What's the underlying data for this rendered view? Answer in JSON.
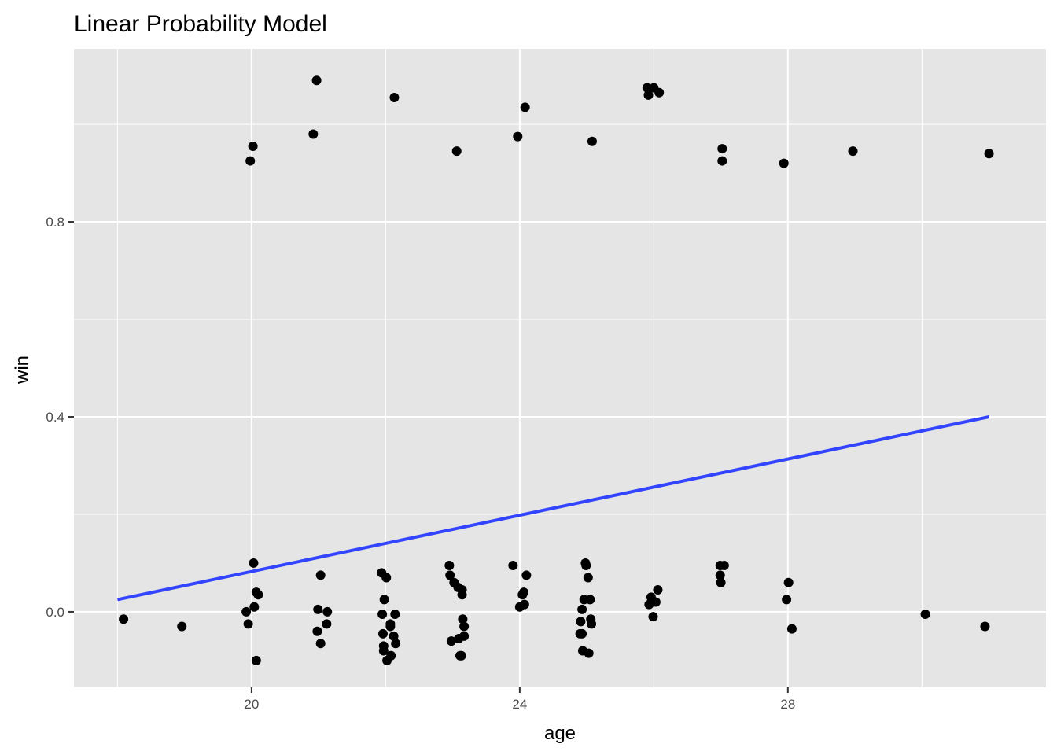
{
  "chart_data": {
    "type": "scatter",
    "title": "Linear Probability Model",
    "xlabel": "age",
    "ylabel": "win",
    "xlim": [
      17.35,
      31.85
    ],
    "ylim": [
      -0.155,
      1.155
    ],
    "x_ticks": [
      20,
      24,
      28
    ],
    "x_tick_labels": [
      "20",
      "24",
      "28"
    ],
    "y_ticks": [
      0.0,
      0.4,
      0.8
    ],
    "y_tick_labels": [
      "0.0",
      "0.4",
      "0.8"
    ],
    "grid": true,
    "legend": "none",
    "colors": {
      "panel": "#e5e5e5",
      "grid": "#ffffff",
      "points": "#000000",
      "fit_line": "#3344ff",
      "tick": "#333333"
    },
    "points": [
      {
        "x": 18.09,
        "y": -0.015
      },
      {
        "x": 18.96,
        "y": -0.03
      },
      {
        "x": 19.92,
        "y": 0.0
      },
      {
        "x": 19.95,
        "y": -0.025
      },
      {
        "x": 19.98,
        "y": 0.925
      },
      {
        "x": 20.02,
        "y": 0.955
      },
      {
        "x": 20.03,
        "y": 0.1
      },
      {
        "x": 20.04,
        "y": 0.01
      },
      {
        "x": 20.07,
        "y": 0.04
      },
      {
        "x": 20.07,
        "y": -0.1
      },
      {
        "x": 20.1,
        "y": 0.035
      },
      {
        "x": 20.92,
        "y": 0.98
      },
      {
        "x": 20.97,
        "y": 1.09
      },
      {
        "x": 20.98,
        "y": -0.04
      },
      {
        "x": 20.99,
        "y": 0.005
      },
      {
        "x": 21.03,
        "y": 0.075
      },
      {
        "x": 21.03,
        "y": -0.065
      },
      {
        "x": 21.12,
        "y": -0.025
      },
      {
        "x": 21.13,
        "y": 0.0
      },
      {
        "x": 21.94,
        "y": 0.08
      },
      {
        "x": 21.95,
        "y": -0.005
      },
      {
        "x": 21.96,
        "y": -0.045
      },
      {
        "x": 21.97,
        "y": -0.08
      },
      {
        "x": 21.97,
        "y": -0.07
      },
      {
        "x": 21.98,
        "y": 0.025
      },
      {
        "x": 22.01,
        "y": 0.07
      },
      {
        "x": 22.02,
        "y": -0.1
      },
      {
        "x": 22.07,
        "y": -0.025
      },
      {
        "x": 22.07,
        "y": -0.03
      },
      {
        "x": 22.08,
        "y": -0.09
      },
      {
        "x": 22.12,
        "y": -0.05
      },
      {
        "x": 22.13,
        "y": 1.055
      },
      {
        "x": 22.14,
        "y": -0.005
      },
      {
        "x": 22.15,
        "y": -0.065
      },
      {
        "x": 22.95,
        "y": 0.095
      },
      {
        "x": 22.96,
        "y": 0.075
      },
      {
        "x": 22.98,
        "y": -0.06
      },
      {
        "x": 23.02,
        "y": 0.06
      },
      {
        "x": 23.06,
        "y": 0.945
      },
      {
        "x": 23.08,
        "y": 0.05
      },
      {
        "x": 23.09,
        "y": -0.055
      },
      {
        "x": 23.11,
        "y": -0.09
      },
      {
        "x": 23.13,
        "y": -0.09
      },
      {
        "x": 23.14,
        "y": 0.035
      },
      {
        "x": 23.14,
        "y": 0.045
      },
      {
        "x": 23.15,
        "y": -0.015
      },
      {
        "x": 23.17,
        "y": -0.03
      },
      {
        "x": 23.17,
        "y": -0.05
      },
      {
        "x": 23.9,
        "y": 0.095
      },
      {
        "x": 23.97,
        "y": 0.975
      },
      {
        "x": 24.0,
        "y": 0.01
      },
      {
        "x": 24.04,
        "y": 0.035
      },
      {
        "x": 24.06,
        "y": 0.04
      },
      {
        "x": 24.07,
        "y": 0.015
      },
      {
        "x": 24.08,
        "y": 1.035
      },
      {
        "x": 24.1,
        "y": 0.075
      },
      {
        "x": 24.9,
        "y": -0.045
      },
      {
        "x": 24.91,
        "y": -0.02
      },
      {
        "x": 24.93,
        "y": 0.005
      },
      {
        "x": 24.93,
        "y": -0.045
      },
      {
        "x": 24.94,
        "y": -0.08
      },
      {
        "x": 24.96,
        "y": 0.025
      },
      {
        "x": 24.98,
        "y": 0.1
      },
      {
        "x": 24.99,
        "y": 0.095
      },
      {
        "x": 25.02,
        "y": 0.07
      },
      {
        "x": 25.03,
        "y": -0.085
      },
      {
        "x": 25.05,
        "y": 0.025
      },
      {
        "x": 25.06,
        "y": -0.015
      },
      {
        "x": 25.07,
        "y": -0.025
      },
      {
        "x": 25.08,
        "y": 0.965
      },
      {
        "x": 25.9,
        "y": 1.075
      },
      {
        "x": 25.92,
        "y": 1.06
      },
      {
        "x": 25.93,
        "y": 0.015
      },
      {
        "x": 25.96,
        "y": 0.03
      },
      {
        "x": 25.99,
        "y": -0.01
      },
      {
        "x": 26.0,
        "y": 1.075
      },
      {
        "x": 26.03,
        "y": 0.02
      },
      {
        "x": 26.06,
        "y": 0.045
      },
      {
        "x": 26.08,
        "y": 1.065
      },
      {
        "x": 26.99,
        "y": 0.095
      },
      {
        "x": 26.99,
        "y": 0.075
      },
      {
        "x": 27.0,
        "y": 0.06
      },
      {
        "x": 27.02,
        "y": 0.95
      },
      {
        "x": 27.02,
        "y": 0.925
      },
      {
        "x": 27.05,
        "y": 0.095
      },
      {
        "x": 27.94,
        "y": 0.92
      },
      {
        "x": 27.98,
        "y": 0.025
      },
      {
        "x": 28.01,
        "y": 0.06
      },
      {
        "x": 28.06,
        "y": -0.035
      },
      {
        "x": 28.97,
        "y": 0.945
      },
      {
        "x": 30.05,
        "y": -0.005
      },
      {
        "x": 30.94,
        "y": -0.03
      },
      {
        "x": 31.0,
        "y": 0.94
      }
    ],
    "fit_line": {
      "x": [
        18,
        31
      ],
      "y": [
        0.025,
        0.4
      ]
    }
  }
}
